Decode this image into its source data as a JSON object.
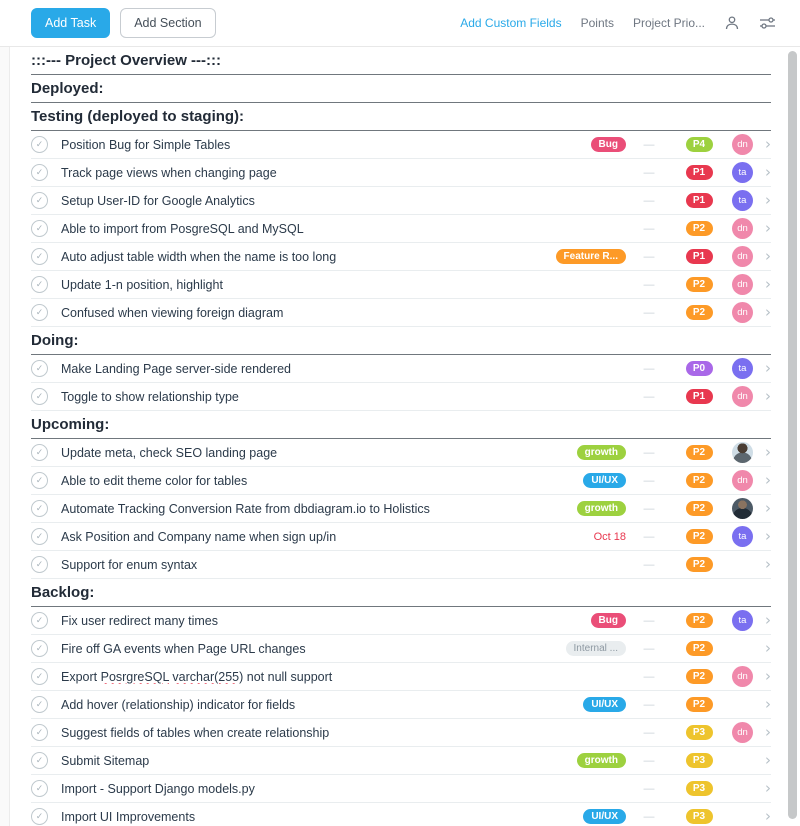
{
  "header": {
    "add_task_label": "Add Task",
    "add_section_label": "Add Section",
    "add_custom_fields_label": "Add Custom Fields",
    "points_label": "Points",
    "project_priority_label": "Project Prio...",
    "icons": [
      "member-icon",
      "filter-sliders-icon"
    ]
  },
  "list": {
    "empty_value": "—",
    "check_glyph": "✓",
    "chevron_glyph": "›"
  },
  "colors": {
    "accent_blue": "#29a9e8",
    "tag_bug": "#ea4e78",
    "tag_feature": "#fd9a27",
    "tag_growth": "#9dd13f",
    "tag_uiux": "#29a9e8",
    "tag_internal_bg": "#e9edef",
    "tag_internal_text": "#8d98a1",
    "p0": "#a968e8",
    "p1": "#e8384f",
    "p2": "#fd9a27",
    "p3": "#eec42d",
    "p4": "#9dd13f",
    "avatar_ta": "#7a6ff0",
    "avatar_dn": "#f088ab",
    "due_red": "#e8384f"
  },
  "sections": [
    {
      "title": ":::--- Project Overview ---:::",
      "tasks": []
    },
    {
      "title": "Deployed:",
      "tasks": []
    },
    {
      "title": "Testing (deployed to staging):",
      "tasks": [
        {
          "name": "Position Bug for Simple Tables",
          "tag": {
            "label": "Bug",
            "color": "#ea4e78"
          },
          "priority": {
            "label": "P4",
            "color": "#9dd13f"
          },
          "assignee": {
            "type": "initials",
            "label": "dn",
            "color": "#f088ab"
          }
        },
        {
          "name": "Track page views when changing page",
          "priority": {
            "label": "P1",
            "color": "#e8384f"
          },
          "assignee": {
            "type": "initials",
            "label": "ta",
            "color": "#7a6ff0"
          }
        },
        {
          "name": "Setup User-ID for Google Analytics",
          "priority": {
            "label": "P1",
            "color": "#e8384f"
          },
          "assignee": {
            "type": "initials",
            "label": "ta",
            "color": "#7a6ff0"
          }
        },
        {
          "name": "Able to import from PosgreSQL and MySQL",
          "priority": {
            "label": "P2",
            "color": "#fd9a27"
          },
          "assignee": {
            "type": "initials",
            "label": "dn",
            "color": "#f088ab"
          }
        },
        {
          "name": "Auto adjust table width when the name is too long",
          "tag": {
            "label": "Feature R...",
            "color": "#fd9a27"
          },
          "priority": {
            "label": "P1",
            "color": "#e8384f"
          },
          "assignee": {
            "type": "initials",
            "label": "dn",
            "color": "#f088ab"
          }
        },
        {
          "name": "Update 1-n position, highlight",
          "priority": {
            "label": "P2",
            "color": "#fd9a27"
          },
          "assignee": {
            "type": "initials",
            "label": "dn",
            "color": "#f088ab"
          }
        },
        {
          "name": "Confused when viewing foreign diagram",
          "priority": {
            "label": "P2",
            "color": "#fd9a27"
          },
          "assignee": {
            "type": "initials",
            "label": "dn",
            "color": "#f088ab"
          }
        }
      ]
    },
    {
      "title": "Doing:",
      "tasks": [
        {
          "name": "Make Landing Page server-side rendered",
          "priority": {
            "label": "P0",
            "color": "#a968e8"
          },
          "assignee": {
            "type": "initials",
            "label": "ta",
            "color": "#7a6ff0"
          }
        },
        {
          "name": "Toggle to show relationship type",
          "priority": {
            "label": "P1",
            "color": "#e8384f"
          },
          "assignee": {
            "type": "initials",
            "label": "dn",
            "color": "#f088ab"
          }
        }
      ]
    },
    {
      "title": "Upcoming:",
      "tasks": [
        {
          "name": "Update meta, check SEO landing page",
          "tag": {
            "label": "growth",
            "color": "#9dd13f"
          },
          "priority": {
            "label": "P2",
            "color": "#fd9a27"
          },
          "assignee": {
            "type": "photo",
            "variant": "photo-light"
          }
        },
        {
          "name": "Able to edit theme color for tables",
          "tag": {
            "label": "UI/UX",
            "color": "#29a9e8"
          },
          "priority": {
            "label": "P2",
            "color": "#fd9a27"
          },
          "assignee": {
            "type": "initials",
            "label": "dn",
            "color": "#f088ab"
          }
        },
        {
          "name": "Automate Tracking Conversion Rate from dbdiagram.io to Holistics",
          "tag": {
            "label": "growth",
            "color": "#9dd13f"
          },
          "priority": {
            "label": "P2",
            "color": "#fd9a27"
          },
          "assignee": {
            "type": "photo",
            "variant": "photo-dark"
          }
        },
        {
          "name": "Ask Position and Company name when sign up/in",
          "due": "Oct 18",
          "priority": {
            "label": "P2",
            "color": "#fd9a27"
          },
          "assignee": {
            "type": "initials",
            "label": "ta",
            "color": "#7a6ff0"
          }
        },
        {
          "name": "Support for enum syntax",
          "priority": {
            "label": "P2",
            "color": "#fd9a27"
          }
        }
      ]
    },
    {
      "title": "Backlog:",
      "tasks": [
        {
          "name": "Fix user redirect many times",
          "tag": {
            "label": "Bug",
            "color": "#ea4e78"
          },
          "priority": {
            "label": "P2",
            "color": "#fd9a27"
          },
          "assignee": {
            "type": "initials",
            "label": "ta",
            "color": "#7a6ff0"
          }
        },
        {
          "name": "Fire off GA events when Page URL changes",
          "tag": {
            "label": "Internal ...",
            "color": "#e9edef",
            "text_color": "#8d98a1"
          },
          "priority": {
            "label": "P2",
            "color": "#fd9a27"
          }
        },
        {
          "name": "Export PosrgreSQL varchar(255) not null support",
          "misspelled": [
            "PosrgreSQL",
            "varchar(255)"
          ],
          "priority": {
            "label": "P2",
            "color": "#fd9a27"
          },
          "assignee": {
            "type": "initials",
            "label": "dn",
            "color": "#f088ab"
          }
        },
        {
          "name": "Add hover (relationship) indicator for fields",
          "tag": {
            "label": "UI/UX",
            "color": "#29a9e8"
          },
          "priority": {
            "label": "P2",
            "color": "#fd9a27"
          }
        },
        {
          "name": "Suggest fields of tables when create relationship",
          "priority": {
            "label": "P3",
            "color": "#eec42d"
          },
          "assignee": {
            "type": "initials",
            "label": "dn",
            "color": "#f088ab"
          }
        },
        {
          "name": "Submit Sitemap",
          "tag": {
            "label": "growth",
            "color": "#9dd13f"
          },
          "priority": {
            "label": "P3",
            "color": "#eec42d"
          }
        },
        {
          "name": "Import - Support Django models.py",
          "priority": {
            "label": "P3",
            "color": "#eec42d"
          }
        },
        {
          "name": "Import UI Improvements",
          "tag": {
            "label": "UI/UX",
            "color": "#29a9e8"
          },
          "priority": {
            "label": "P3",
            "color": "#eec42d"
          }
        }
      ]
    }
  ]
}
